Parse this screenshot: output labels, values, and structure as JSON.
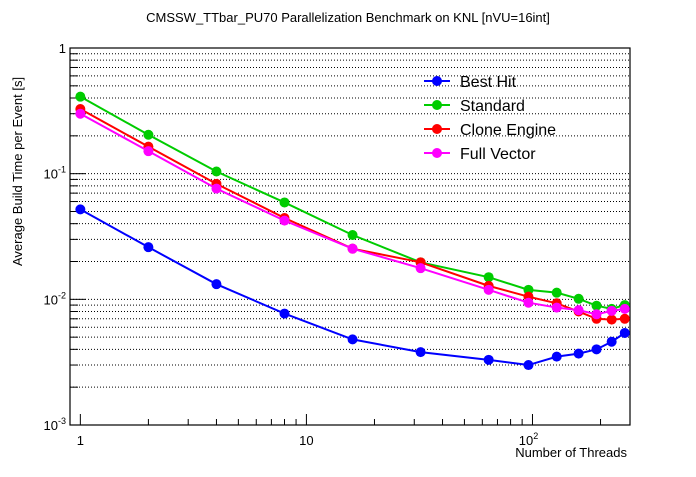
{
  "chart_data": {
    "type": "line",
    "title": "CMSSW_TTbar_PU70 Parallelization Benchmark on KNL [nVU=16int]",
    "xlabel": "Number of Threads",
    "ylabel": "Average Build Time per Event [s]",
    "xscale": "log",
    "yscale": "log",
    "xlim": [
      0.9,
      270
    ],
    "ylim": [
      0.001,
      1
    ],
    "grid": "horizontal dotted at every y tick",
    "legend": "top-right",
    "x_ticks": [
      {
        "value": 1,
        "label": "1"
      },
      {
        "value": 10,
        "label": "10"
      },
      {
        "value": 100,
        "label": "10",
        "exp": "2"
      }
    ],
    "y_ticks": [
      {
        "value": 1,
        "label": "1"
      },
      {
        "value": 0.1,
        "label": "10",
        "exp": "-1"
      },
      {
        "value": 0.01,
        "label": "10",
        "exp": "-2"
      },
      {
        "value": 0.001,
        "label": "10",
        "exp": "-3"
      }
    ],
    "x": [
      1,
      2,
      4,
      8,
      16,
      32,
      64,
      96,
      128,
      160,
      192,
      224,
      256
    ],
    "series": [
      {
        "name": "Best Hit",
        "color": "#0000ff",
        "values": [
          0.052,
          0.026,
          0.0132,
          0.0077,
          0.0048,
          0.0038,
          0.0033,
          0.003,
          0.0035,
          0.0037,
          0.004,
          0.0046,
          0.0054
        ]
      },
      {
        "name": "Standard",
        "color": "#00cc00",
        "values": [
          0.41,
          0.204,
          0.104,
          0.059,
          0.0325,
          0.0197,
          0.015,
          0.0119,
          0.0113,
          0.0101,
          0.0089,
          0.0084,
          0.009
        ]
      },
      {
        "name": "Clone Engine",
        "color": "#ff0000",
        "values": [
          0.327,
          0.164,
          0.083,
          0.0444,
          0.0253,
          0.0197,
          0.0128,
          0.0105,
          0.0093,
          0.008,
          0.007,
          0.0069,
          0.007
        ]
      },
      {
        "name": "Full Vector",
        "color": "#ff00ff",
        "values": [
          0.3,
          0.151,
          0.076,
          0.0423,
          0.0253,
          0.0177,
          0.0119,
          0.0094,
          0.0086,
          0.0082,
          0.0076,
          0.0081,
          0.0084
        ]
      }
    ]
  }
}
